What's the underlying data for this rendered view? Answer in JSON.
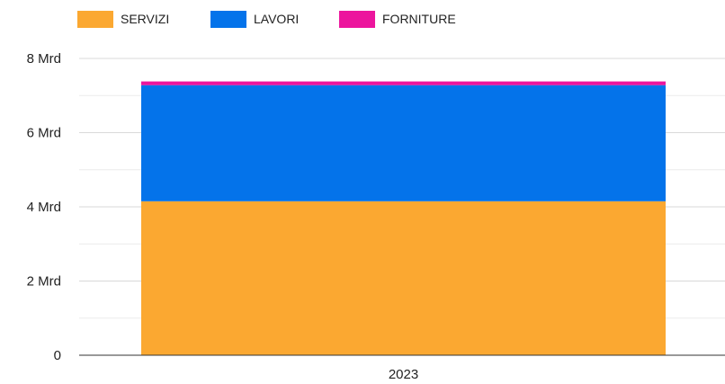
{
  "chart_data": {
    "type": "bar",
    "stacked": true,
    "categories": [
      "2023"
    ],
    "series": [
      {
        "name": "SERVIZI",
        "values": [
          4150000000
        ],
        "color": "#FBA831"
      },
      {
        "name": "LAVORI",
        "values": [
          3130000000
        ],
        "color": "#0473EA"
      },
      {
        "name": "FORNITURE",
        "values": [
          100000000
        ],
        "color": "#EC159D"
      }
    ],
    "ylim": [
      0,
      8000000000
    ],
    "yticks": [
      {
        "value": 0,
        "label": "0"
      },
      {
        "value": 2000000000,
        "label": "2 Mrd"
      },
      {
        "value": 4000000000,
        "label": "4 Mrd"
      },
      {
        "value": 6000000000,
        "label": "6 Mrd"
      },
      {
        "value": 8000000000,
        "label": "8 Mrd"
      }
    ],
    "minor_gridlines": true,
    "legend_position": "top-left",
    "grid": true
  }
}
